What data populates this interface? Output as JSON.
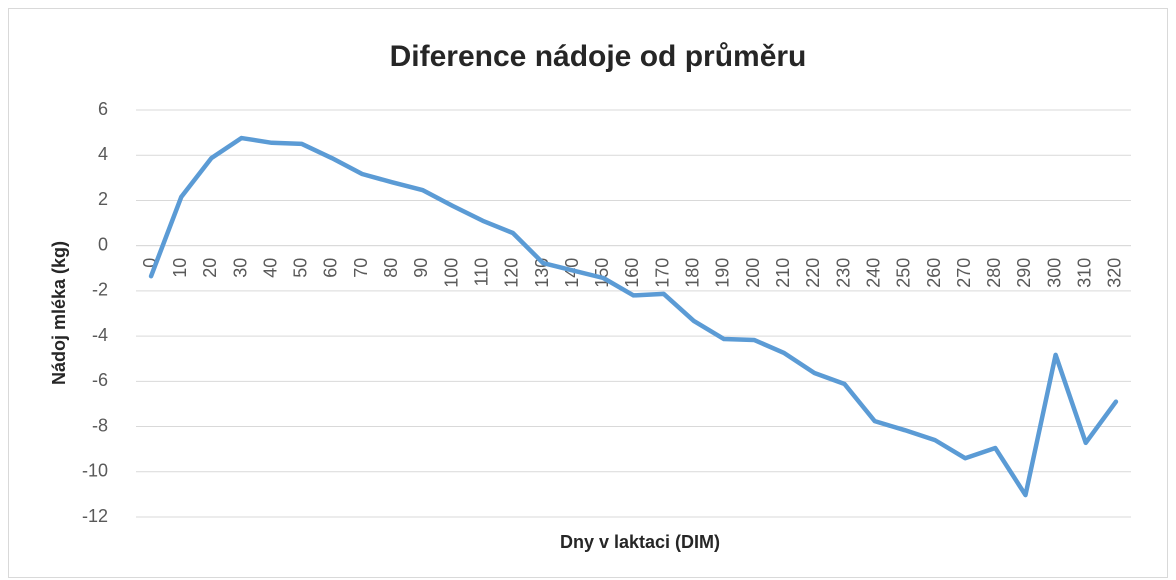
{
  "chart_data": {
    "type": "line",
    "title": "Diference nádoje od průměru",
    "x_label": "Dny v laktaci (DIM)",
    "y_label": "Nádoj mléka (kg)",
    "categories": [
      "0",
      "10",
      "20",
      "30",
      "40",
      "50",
      "60",
      "70",
      "80",
      "90",
      "100",
      "110",
      "120",
      "130",
      "140",
      "150",
      "160",
      "170",
      "180",
      "190",
      "200",
      "210",
      "220",
      "230",
      "240",
      "250",
      "260",
      "270",
      "280",
      "290",
      "300",
      "310",
      "320"
    ],
    "series": [
      {
        "name": "Diference nádoje od průměru",
        "color": "#5b9bd5",
        "values": [
          -1.35,
          2.15,
          3.87,
          4.76,
          4.55,
          4.5,
          3.87,
          3.17,
          2.8,
          2.46,
          1.76,
          1.1,
          0.56,
          -0.77,
          -1.1,
          -1.43,
          -2.2,
          -2.13,
          -3.33,
          -4.13,
          -4.17,
          -4.75,
          -5.63,
          -6.12,
          -7.76,
          -8.16,
          -8.6,
          -9.4,
          -8.95,
          -11.03,
          -4.83,
          -8.72,
          -6.9
        ]
      }
    ],
    "ylim": [
      -12,
      6
    ],
    "yticks": [
      -12,
      -10,
      -8,
      -6,
      -4,
      -2,
      0,
      2,
      4,
      6
    ],
    "grid": true
  }
}
